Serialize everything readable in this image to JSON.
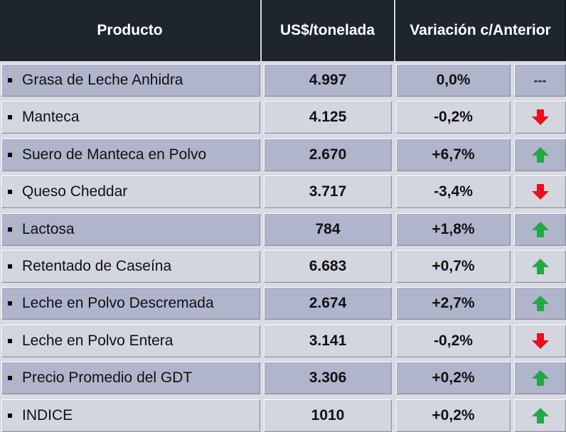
{
  "header": {
    "product": "Producto",
    "price": "US$/tonelada",
    "variation": "Variación c/Anterior"
  },
  "colors": {
    "up": "#22a845",
    "down": "#e8101a",
    "header_bg": "#1e252e"
  },
  "rows": [
    {
      "product": "Grasa de Leche Anhidra",
      "price": "4.997",
      "variation": "0,0%",
      "trend": "none",
      "trend_text": "---"
    },
    {
      "product": "Manteca",
      "price": "4.125",
      "variation": "-0,2%",
      "trend": "down"
    },
    {
      "product": "Suero de Manteca en Polvo",
      "price": "2.670",
      "variation": "+6,7%",
      "trend": "up"
    },
    {
      "product": "Queso Cheddar",
      "price": "3.717",
      "variation": "-3,4%",
      "trend": "down"
    },
    {
      "product": "Lactosa",
      "price": "784",
      "variation": "+1,8%",
      "trend": "up"
    },
    {
      "product": "Retentado de Caseína",
      "price": "6.683",
      "variation": "+0,7%",
      "trend": "up"
    },
    {
      "product": "Leche en Polvo Descremada",
      "price": "2.674",
      "variation": "+2,7%",
      "trend": "up"
    },
    {
      "product": "Leche en Polvo Entera",
      "price": "3.141",
      "variation": "-0,2%",
      "trend": "down"
    },
    {
      "product": "Precio Promedio del GDT",
      "price": "3.306",
      "variation": "+0,2%",
      "trend": "up"
    },
    {
      "product": "INDICE",
      "price": "1010",
      "variation": "+0,2%",
      "trend": "up"
    }
  ]
}
